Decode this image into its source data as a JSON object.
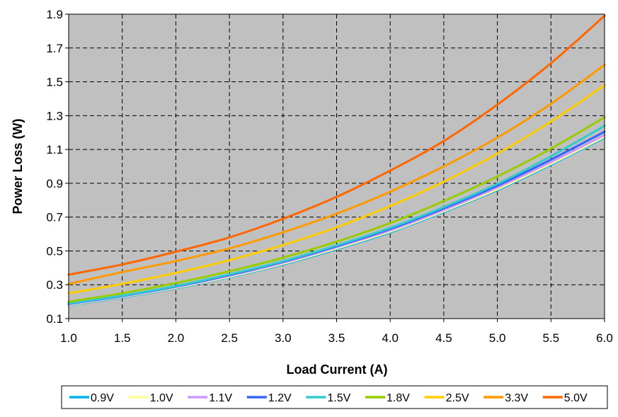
{
  "chart_data": {
    "type": "line",
    "title": "",
    "xlabel": "Load Current (A)",
    "ylabel": "Power Loss (W)",
    "xlim": [
      1.0,
      6.0
    ],
    "ylim": [
      0.1,
      1.9
    ],
    "x_ticks": [
      "1.0",
      "1.5",
      "2.0",
      "2.5",
      "3.0",
      "3.5",
      "4.0",
      "4.5",
      "5.0",
      "5.5",
      "6.0"
    ],
    "y_ticks": [
      "0.1",
      "0.3",
      "0.5",
      "0.7",
      "0.9",
      "1.1",
      "1.3",
      "1.5",
      "1.7",
      "1.9"
    ],
    "grid": true,
    "plot_background": "#c0c0c0",
    "legend_position": "bottom",
    "x": [
      1.0,
      1.5,
      2.0,
      2.5,
      3.0,
      3.5,
      4.0,
      4.5,
      5.0,
      5.5,
      6.0
    ],
    "series": [
      {
        "name": "0.9V",
        "color": "#00b0f0",
        "values": [
          0.18,
          0.225,
          0.28,
          0.345,
          0.42,
          0.51,
          0.61,
          0.73,
          0.86,
          1.01,
          1.17
        ]
      },
      {
        "name": "1.0V",
        "color": "#ffff99",
        "values": [
          0.182,
          0.228,
          0.283,
          0.348,
          0.424,
          0.515,
          0.615,
          0.735,
          0.865,
          1.015,
          1.175
        ]
      },
      {
        "name": "1.1V",
        "color": "#cc99ff",
        "values": [
          0.185,
          0.231,
          0.287,
          0.353,
          0.43,
          0.522,
          0.622,
          0.742,
          0.875,
          1.025,
          1.185
        ]
      },
      {
        "name": "1.2V",
        "color": "#3366ff",
        "values": [
          0.188,
          0.234,
          0.29,
          0.358,
          0.436,
          0.528,
          0.63,
          0.752,
          0.886,
          1.04,
          1.205
        ]
      },
      {
        "name": "1.5V",
        "color": "#33cccc",
        "values": [
          0.19,
          0.236,
          0.293,
          0.362,
          0.44,
          0.533,
          0.637,
          0.76,
          0.897,
          1.06,
          1.24
        ]
      },
      {
        "name": "1.8V",
        "color": "#99cc00",
        "values": [
          0.2,
          0.25,
          0.31,
          0.38,
          0.46,
          0.555,
          0.665,
          0.795,
          0.94,
          1.105,
          1.29
        ]
      },
      {
        "name": "2.5V",
        "color": "#ffcc00",
        "values": [
          0.25,
          0.305,
          0.37,
          0.445,
          0.535,
          0.64,
          0.765,
          0.91,
          1.075,
          1.265,
          1.48
        ]
      },
      {
        "name": "3.3V",
        "color": "#ff9900",
        "values": [
          0.305,
          0.375,
          0.44,
          0.515,
          0.61,
          0.72,
          0.85,
          1.0,
          1.17,
          1.37,
          1.6
        ]
      },
      {
        "name": "5.0V",
        "color": "#ff6600",
        "values": [
          0.36,
          0.42,
          0.495,
          0.58,
          0.69,
          0.82,
          0.975,
          1.15,
          1.365,
          1.61,
          1.89
        ]
      }
    ]
  }
}
